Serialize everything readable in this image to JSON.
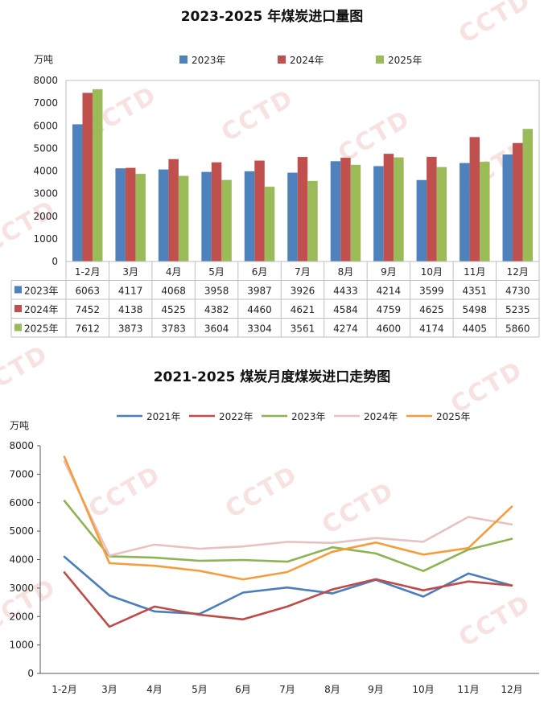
{
  "colors": {
    "s2021": "#4a7ebb",
    "s2022": "#be4b48",
    "s2023": "#8cb453",
    "s2024": "#e6c3c1",
    "s2025": "#f59d3d",
    "bar2023": "#4f81bd",
    "bar2024": "#c0504d",
    "bar2025": "#9bbb59"
  },
  "watermark": "CCTD",
  "chart_data": [
    {
      "type": "bar",
      "title": "2023-2025 年煤炭进口量图",
      "ylabel": "万吨",
      "ylim": [
        0,
        8000
      ],
      "yticks": [
        0,
        1000,
        2000,
        3000,
        4000,
        5000,
        6000,
        7000,
        8000
      ],
      "categories": [
        "1-2月",
        "3月",
        "4月",
        "5月",
        "6月",
        "7月",
        "8月",
        "9月",
        "10月",
        "11月",
        "12月"
      ],
      "legend_position": "top",
      "series": [
        {
          "name": "2023年",
          "values": [
            6063,
            4117,
            4068,
            3958,
            3987,
            3926,
            4433,
            4214,
            3599,
            4351,
            4730
          ]
        },
        {
          "name": "2024年",
          "values": [
            7452,
            4138,
            4525,
            4382,
            4460,
            4621,
            4584,
            4759,
            4625,
            5498,
            5235
          ]
        },
        {
          "name": "2025年",
          "values": [
            7612,
            3873,
            3783,
            3604,
            3304,
            3561,
            4274,
            4600,
            4174,
            4405,
            5860
          ]
        }
      ]
    },
    {
      "type": "line",
      "title": "2021-2025 煤炭月度煤炭进口走势图",
      "ylabel": "万吨",
      "ylim": [
        0,
        8000
      ],
      "yticks": [
        0,
        1000,
        2000,
        3000,
        4000,
        5000,
        6000,
        7000,
        8000
      ],
      "categories": [
        "1-2月",
        "3月",
        "4月",
        "5月",
        "6月",
        "7月",
        "8月",
        "9月",
        "10月",
        "11月",
        "12月"
      ],
      "legend_position": "top",
      "series": [
        {
          "name": "2021年",
          "values": [
            4100,
            2740,
            2180,
            2090,
            2840,
            3020,
            2810,
            3290,
            2700,
            3510,
            3090
          ]
        },
        {
          "name": "2022年",
          "values": [
            3550,
            1640,
            2350,
            2060,
            1900,
            2350,
            2950,
            3310,
            2920,
            3230,
            3090
          ]
        },
        {
          "name": "2023年",
          "values": [
            6063,
            4117,
            4068,
            3958,
            3987,
            3926,
            4433,
            4214,
            3599,
            4351,
            4730
          ]
        },
        {
          "name": "2024年",
          "values": [
            7452,
            4138,
            4525,
            4382,
            4460,
            4621,
            4584,
            4759,
            4625,
            5498,
            5235
          ]
        },
        {
          "name": "2025年",
          "values": [
            7612,
            3873,
            3783,
            3604,
            3304,
            3561,
            4274,
            4600,
            4174,
            4405,
            5860
          ]
        }
      ]
    }
  ]
}
